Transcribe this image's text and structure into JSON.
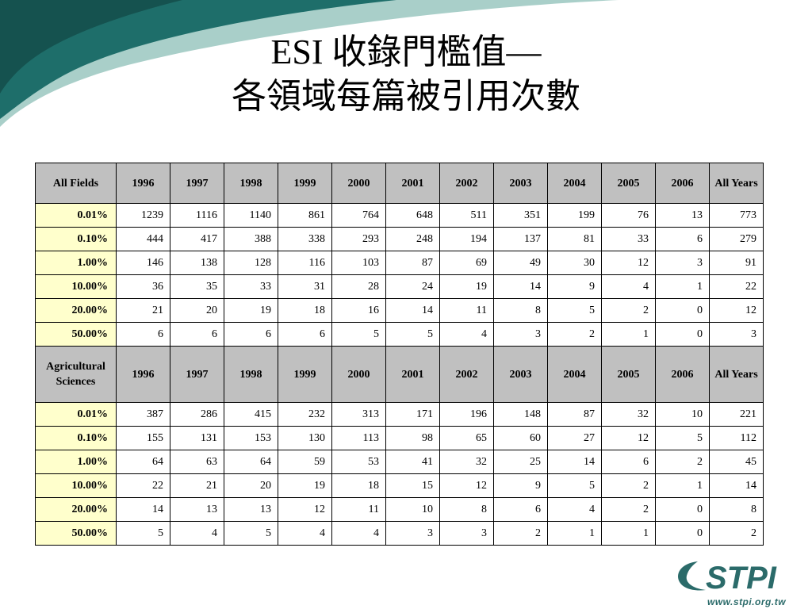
{
  "title": {
    "line1": "ESI 收錄門檻值—",
    "line2": "各領域每篇被引用次數"
  },
  "colors": {
    "header_bg": "#c0c0c0",
    "row_label_bg": "#ffffcc",
    "swoosh_dark": "#1e6e6a",
    "swoosh_light": "#a9cfc9",
    "logo_teal": "#2b6b6a"
  },
  "tables": [
    {
      "field": "All Fields",
      "columns": [
        "1996",
        "1997",
        "1998",
        "1999",
        "2000",
        "2001",
        "2002",
        "2003",
        "2004",
        "2005",
        "2006",
        "All Years"
      ],
      "rows": [
        {
          "label": "0.01%",
          "values": [
            "1239",
            "1116",
            "1140",
            "861",
            "764",
            "648",
            "511",
            "351",
            "199",
            "76",
            "13",
            "773"
          ]
        },
        {
          "label": "0.10%",
          "values": [
            "444",
            "417",
            "388",
            "338",
            "293",
            "248",
            "194",
            "137",
            "81",
            "33",
            "6",
            "279"
          ]
        },
        {
          "label": "1.00%",
          "values": [
            "146",
            "138",
            "128",
            "116",
            "103",
            "87",
            "69",
            "49",
            "30",
            "12",
            "3",
            "91"
          ]
        },
        {
          "label": "10.00%",
          "values": [
            "36",
            "35",
            "33",
            "31",
            "28",
            "24",
            "19",
            "14",
            "9",
            "4",
            "1",
            "22"
          ]
        },
        {
          "label": "20.00%",
          "values": [
            "21",
            "20",
            "19",
            "18",
            "16",
            "14",
            "11",
            "8",
            "5",
            "2",
            "0",
            "12"
          ]
        },
        {
          "label": "50.00%",
          "values": [
            "6",
            "6",
            "6",
            "6",
            "5",
            "5",
            "4",
            "3",
            "2",
            "1",
            "0",
            "3"
          ]
        }
      ]
    },
    {
      "field": "Agricultural Sciences",
      "columns": [
        "1996",
        "1997",
        "1998",
        "1999",
        "2000",
        "2001",
        "2002",
        "2003",
        "2004",
        "2005",
        "2006",
        "All Years"
      ],
      "rows": [
        {
          "label": "0.01%",
          "values": [
            "387",
            "286",
            "415",
            "232",
            "313",
            "171",
            "196",
            "148",
            "87",
            "32",
            "10",
            "221"
          ]
        },
        {
          "label": "0.10%",
          "values": [
            "155",
            "131",
            "153",
            "130",
            "113",
            "98",
            "65",
            "60",
            "27",
            "12",
            "5",
            "112"
          ]
        },
        {
          "label": "1.00%",
          "values": [
            "64",
            "63",
            "64",
            "59",
            "53",
            "41",
            "32",
            "25",
            "14",
            "6",
            "2",
            "45"
          ]
        },
        {
          "label": "10.00%",
          "values": [
            "22",
            "21",
            "20",
            "19",
            "18",
            "15",
            "12",
            "9",
            "5",
            "2",
            "1",
            "14"
          ]
        },
        {
          "label": "20.00%",
          "values": [
            "14",
            "13",
            "13",
            "12",
            "11",
            "10",
            "8",
            "6",
            "4",
            "2",
            "0",
            "8"
          ]
        },
        {
          "label": "50.00%",
          "values": [
            "5",
            "4",
            "5",
            "4",
            "4",
            "3",
            "3",
            "2",
            "1",
            "1",
            "0",
            "2"
          ]
        }
      ]
    }
  ],
  "logo": {
    "text": "STPI",
    "url": "www.stpi.org.tw"
  }
}
